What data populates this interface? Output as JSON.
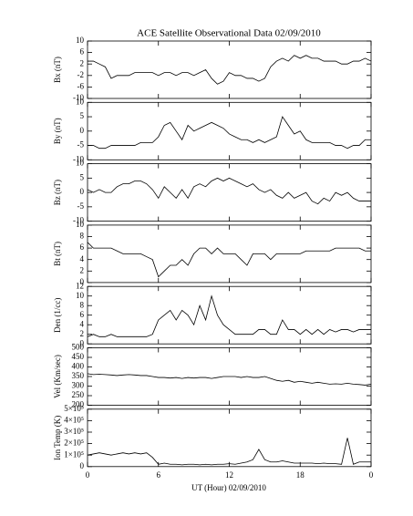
{
  "chart_data": [
    {
      "type": "line",
      "title": "ACE Satellite Observational Data   02/09/2010",
      "ylabel": "Bx (nT)",
      "color": "#000000",
      "xlim": [
        0,
        24
      ],
      "xticks": [
        0,
        6,
        12,
        18,
        {
          "value": 24,
          "label": "0"
        }
      ],
      "ylim": [
        -10,
        10
      ],
      "yticks": [
        -10,
        -6,
        -2,
        2,
        6,
        10
      ],
      "x": [
        0,
        0.5,
        1,
        1.5,
        2,
        2.5,
        3,
        3.5,
        4,
        4.5,
        5,
        5.5,
        6,
        6.5,
        7,
        7.5,
        8,
        8.5,
        9,
        9.5,
        10,
        10.5,
        11,
        11.5,
        12,
        12.5,
        13,
        13.5,
        14,
        14.5,
        15,
        15.5,
        16,
        16.5,
        17,
        17.5,
        18,
        18.5,
        19,
        19.5,
        20,
        20.5,
        21,
        21.5,
        22,
        22.5,
        23,
        23.5,
        24
      ],
      "values": [
        3,
        3,
        2,
        1,
        -3,
        -2,
        -2,
        -2,
        -1,
        -1,
        -1,
        -1,
        -2,
        -1,
        -1,
        -2,
        -1,
        -1,
        -2,
        -1,
        0,
        -3,
        -5,
        -4,
        -1,
        -2,
        -2,
        -3,
        -3,
        -4,
        -3,
        1,
        3,
        4,
        3,
        5,
        4,
        5,
        4,
        4,
        3,
        3,
        3,
        2,
        2,
        3,
        3,
        4,
        3
      ]
    },
    {
      "type": "line",
      "ylabel": "By (nT)",
      "color": "#000000",
      "xlim": [
        0,
        24
      ],
      "xticks": [
        0,
        6,
        12,
        18,
        {
          "value": 24,
          "label": "0"
        }
      ],
      "ylim": [
        -10,
        10
      ],
      "yticks": [
        -10,
        -5,
        0,
        5,
        10
      ],
      "x": [
        0,
        0.5,
        1,
        1.5,
        2,
        2.5,
        3,
        3.5,
        4,
        4.5,
        5,
        5.5,
        6,
        6.5,
        7,
        7.5,
        8,
        8.5,
        9,
        9.5,
        10,
        10.5,
        11,
        11.5,
        12,
        12.5,
        13,
        13.5,
        14,
        14.5,
        15,
        15.5,
        16,
        16.5,
        17,
        17.5,
        18,
        18.5,
        19,
        19.5,
        20,
        20.5,
        21,
        21.5,
        22,
        22.5,
        23,
        23.5,
        24
      ],
      "values": [
        -5,
        -5,
        -6,
        -6,
        -5,
        -5,
        -5,
        -5,
        -5,
        -4,
        -4,
        -4,
        -2,
        2,
        3,
        0,
        -3,
        2,
        0,
        1,
        2,
        3,
        2,
        1,
        -1,
        -2,
        -3,
        -3,
        -4,
        -3,
        -4,
        -3,
        -2,
        5,
        2,
        -1,
        0,
        -3,
        -4,
        -4,
        -4,
        -4,
        -5,
        -5,
        -6,
        -5,
        -5,
        -3,
        -3
      ]
    },
    {
      "type": "line",
      "ylabel": "Bz (nT)",
      "color": "#000000",
      "xlim": [
        0,
        24
      ],
      "xticks": [
        0,
        6,
        12,
        18,
        {
          "value": 24,
          "label": "0"
        }
      ],
      "ylim": [
        -10,
        10
      ],
      "yticks": [
        -10,
        -5,
        0,
        5,
        10
      ],
      "x": [
        0,
        0.5,
        1,
        1.5,
        2,
        2.5,
        3,
        3.5,
        4,
        4.5,
        5,
        5.5,
        6,
        6.5,
        7,
        7.5,
        8,
        8.5,
        9,
        9.5,
        10,
        10.5,
        11,
        11.5,
        12,
        12.5,
        13,
        13.5,
        14,
        14.5,
        15,
        15.5,
        16,
        16.5,
        17,
        17.5,
        18,
        18.5,
        19,
        19.5,
        20,
        20.5,
        21,
        21.5,
        22,
        22.5,
        23,
        23.5,
        24
      ],
      "values": [
        1,
        0,
        1,
        0,
        0,
        2,
        3,
        3,
        4,
        4,
        3,
        1,
        -2,
        2,
        0,
        -2,
        1,
        -2,
        2,
        3,
        2,
        4,
        5,
        4,
        5,
        4,
        3,
        2,
        3,
        1,
        0,
        1,
        -1,
        -2,
        0,
        -2,
        -1,
        0,
        -3,
        -4,
        -2,
        -3,
        0,
        -1,
        0,
        -2,
        -3,
        -3,
        -3
      ]
    },
    {
      "type": "line",
      "ylabel": "Bt (nT)",
      "color": "#000000",
      "xlim": [
        0,
        24
      ],
      "xticks": [
        0,
        6,
        12,
        18,
        {
          "value": 24,
          "label": "0"
        }
      ],
      "ylim": [
        0,
        10
      ],
      "yticks": [
        0,
        2,
        4,
        6,
        8,
        10
      ],
      "x": [
        0,
        0.5,
        1,
        1.5,
        2,
        2.5,
        3,
        3.5,
        4,
        4.5,
        5,
        5.5,
        6,
        6.5,
        7,
        7.5,
        8,
        8.5,
        9,
        9.5,
        10,
        10.5,
        11,
        11.5,
        12,
        12.5,
        13,
        13.5,
        14,
        14.5,
        15,
        15.5,
        16,
        16.5,
        17,
        17.5,
        18,
        18.5,
        19,
        19.5,
        20,
        20.5,
        21,
        21.5,
        22,
        22.5,
        23,
        23.5,
        24
      ],
      "values": [
        7,
        6,
        6,
        6,
        6,
        5.5,
        5,
        5,
        5,
        5,
        4.5,
        4,
        1,
        2,
        3,
        3,
        4,
        3,
        5,
        6,
        6,
        5,
        6,
        5,
        5,
        5,
        4,
        3,
        5,
        5,
        5,
        4,
        5,
        5,
        5,
        5,
        5,
        5.5,
        5.5,
        5.5,
        5.5,
        5.5,
        6,
        6,
        6,
        6,
        6,
        5.5,
        5.5
      ]
    },
    {
      "type": "line",
      "ylabel": "Den (1/cc)",
      "color": "#000000",
      "xlim": [
        0,
        24
      ],
      "xticks": [
        0,
        6,
        12,
        18,
        {
          "value": 24,
          "label": "0"
        }
      ],
      "ylim": [
        0,
        12
      ],
      "yticks": [
        0,
        2,
        4,
        6,
        8,
        10,
        12
      ],
      "x": [
        0,
        0.5,
        1,
        1.5,
        2,
        2.5,
        3,
        3.5,
        4,
        4.5,
        5,
        5.5,
        6,
        6.5,
        7,
        7.5,
        8,
        8.5,
        9,
        9.5,
        10,
        10.5,
        11,
        11.5,
        12,
        12.5,
        13,
        13.5,
        14,
        14.5,
        15,
        15.5,
        16,
        16.5,
        17,
        17.5,
        18,
        18.5,
        19,
        19.5,
        20,
        20.5,
        21,
        21.5,
        22,
        22.5,
        23,
        23.5,
        24
      ],
      "values": [
        1.5,
        2,
        1.5,
        1.5,
        2,
        1.5,
        1.5,
        1.5,
        1.5,
        1.5,
        1.5,
        2,
        5,
        6,
        7,
        5,
        7,
        6,
        4,
        8,
        5,
        10,
        6,
        4,
        3,
        2,
        2,
        2,
        2,
        3,
        3,
        2,
        2,
        5,
        3,
        3,
        2,
        3,
        2,
        3,
        2,
        3,
        2.5,
        3,
        3,
        2.5,
        3,
        3,
        3
      ]
    },
    {
      "type": "line",
      "ylabel": "Vel (Km/sec)",
      "color": "#000000",
      "xlim": [
        0,
        24
      ],
      "xticks": [
        0,
        6,
        12,
        18,
        {
          "value": 24,
          "label": "0"
        }
      ],
      "ylim": [
        200,
        500
      ],
      "yticks": [
        200,
        250,
        300,
        350,
        400,
        450,
        500
      ],
      "x": [
        0,
        0.5,
        1,
        1.5,
        2,
        2.5,
        3,
        3.5,
        4,
        4.5,
        5,
        5.5,
        6,
        6.5,
        7,
        7.5,
        8,
        8.5,
        9,
        9.5,
        10,
        10.5,
        11,
        11.5,
        12,
        12.5,
        13,
        13.5,
        14,
        14.5,
        15,
        15.5,
        16,
        16.5,
        17,
        17.5,
        18,
        18.5,
        19,
        19.5,
        20,
        20.5,
        21,
        21.5,
        22,
        22.5,
        23,
        23.5,
        24
      ],
      "values": [
        365,
        360,
        362,
        360,
        358,
        355,
        358,
        360,
        358,
        355,
        355,
        350,
        345,
        345,
        342,
        345,
        340,
        345,
        342,
        345,
        345,
        340,
        345,
        350,
        350,
        350,
        345,
        350,
        345,
        345,
        350,
        340,
        330,
        325,
        330,
        320,
        325,
        320,
        315,
        320,
        315,
        310,
        312,
        310,
        315,
        310,
        308,
        305,
        310
      ]
    },
    {
      "type": "line",
      "ylabel": "Ion Temp (K)",
      "xlabel": "UT (Hour)   02/09/2010",
      "color": "#000000",
      "xlim": [
        0,
        24
      ],
      "xticks": [
        0,
        6,
        12,
        18,
        {
          "value": 24,
          "label": "0"
        }
      ],
      "ylim": [
        0,
        500000
      ],
      "yticks": [
        0,
        {
          "value": 100000,
          "label": "1×10⁵"
        },
        {
          "value": 200000,
          "label": "2×10⁵"
        },
        {
          "value": 300000,
          "label": "3×10⁵"
        },
        {
          "value": 400000,
          "label": "4×10⁵"
        },
        {
          "value": 500000,
          "label": "5×10⁵"
        }
      ],
      "x": [
        0,
        0.5,
        1,
        1.5,
        2,
        2.5,
        3,
        3.5,
        4,
        4.5,
        5,
        5.5,
        6,
        6.5,
        7,
        7.5,
        8,
        8.5,
        9,
        9.5,
        10,
        10.5,
        11,
        11.5,
        12,
        12.5,
        13,
        13.5,
        14,
        14.5,
        15,
        15.5,
        16,
        16.5,
        17,
        17.5,
        18,
        18.5,
        19,
        19.5,
        20,
        20.5,
        21,
        21.5,
        22,
        22.5,
        23,
        23.5,
        24
      ],
      "values": [
        100000,
        110000,
        120000,
        110000,
        100000,
        110000,
        120000,
        110000,
        120000,
        110000,
        120000,
        80000,
        20000,
        30000,
        20000,
        20000,
        15000,
        20000,
        20000,
        15000,
        20000,
        15000,
        20000,
        20000,
        25000,
        20000,
        30000,
        40000,
        60000,
        150000,
        60000,
        40000,
        40000,
        50000,
        40000,
        30000,
        30000,
        30000,
        30000,
        25000,
        30000,
        25000,
        25000,
        20000,
        250000,
        20000,
        40000,
        40000,
        40000
      ]
    }
  ]
}
